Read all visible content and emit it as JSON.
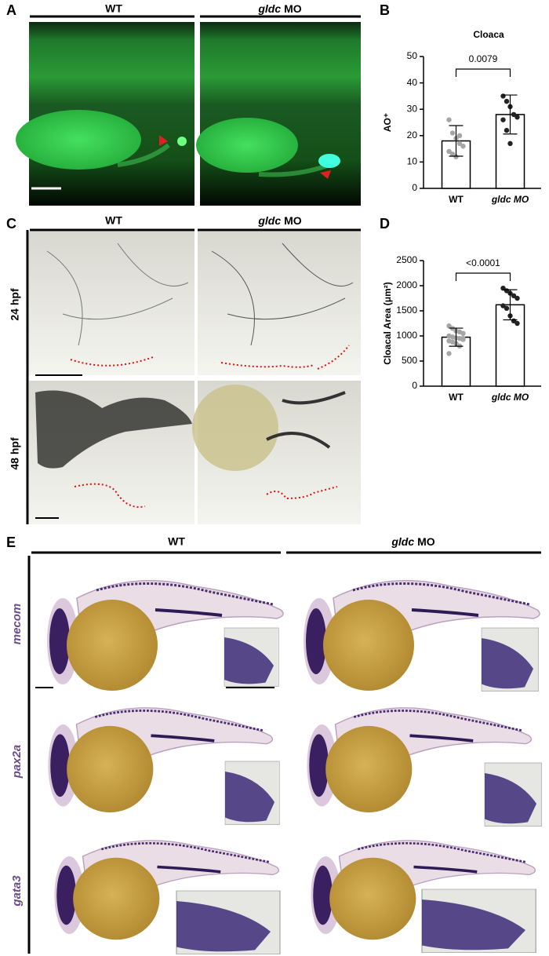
{
  "panel_a": {
    "label": "A",
    "header_left": "WT",
    "header_right": {
      "gene": "gldc",
      "suffix": "MO"
    }
  },
  "panel_c": {
    "label": "C",
    "header_left": "WT",
    "header_right": {
      "gene": "gldc",
      "suffix": "MO"
    },
    "rows": [
      "24 hpf",
      "48 hpf"
    ]
  },
  "panel_e": {
    "label": "E",
    "header_left": "WT",
    "header_right": {
      "gene": "gldc",
      "suffix": "MO"
    },
    "rows": [
      "mecom",
      "pax2a",
      "gata3"
    ]
  },
  "chart_data": [
    {
      "type": "bar",
      "panel_label": "B",
      "title": "Cloaca",
      "ylabel": "AO⁺",
      "categories": [
        "WT",
        "gldc MO"
      ],
      "values": [
        18,
        28
      ],
      "errors": [
        5.8,
        7.4
      ],
      "points": [
        [
          26,
          21,
          19,
          17,
          16,
          14,
          13,
          12,
          20
        ],
        [
          35,
          33,
          31,
          28,
          27,
          26,
          22,
          17
        ]
      ],
      "point_colors": [
        "#a6a6a6",
        "#222222"
      ],
      "significance": "0.0079",
      "ylim": [
        0,
        50
      ],
      "yticks": [
        0,
        10,
        20,
        30,
        40,
        50
      ]
    },
    {
      "type": "bar",
      "panel_label": "D",
      "ylabel": "Cloacal Area (μm²)",
      "categories": [
        "WT",
        "gldc MO"
      ],
      "values": [
        975,
        1620
      ],
      "errors": [
        180,
        300
      ],
      "points": [
        [
          1200,
          1150,
          1100,
          1080,
          1050,
          1000,
          980,
          960,
          950,
          930,
          900,
          880,
          850,
          800,
          950,
          650
        ],
        [
          1950,
          1900,
          1850,
          1800,
          1750,
          1600,
          1550,
          1400,
          1300,
          1250
        ]
      ],
      "point_colors": [
        "#a6a6a6",
        "#222222"
      ],
      "significance": "<0.0001",
      "ylim": [
        0,
        2500
      ],
      "yticks": [
        0,
        500,
        1000,
        1500,
        2000,
        2500
      ]
    }
  ]
}
